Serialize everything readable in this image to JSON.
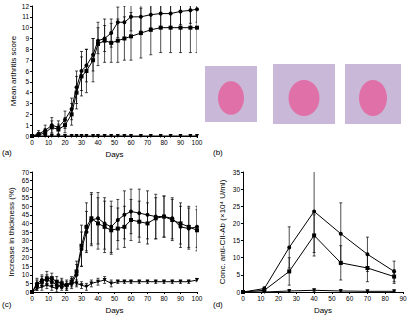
{
  "chart_data": [
    {
      "type": "line",
      "title": "(a)",
      "x_label": "Days",
      "y_label": "Mean arthritis score",
      "xlim": [
        0,
        100
      ],
      "xticks": [
        0,
        10,
        20,
        30,
        40,
        50,
        60,
        70,
        80,
        90,
        100
      ],
      "ylim": [
        0,
        12
      ],
      "yticks": [
        0,
        1,
        2,
        3,
        4,
        5,
        6,
        7,
        8,
        9,
        10,
        11,
        12
      ],
      "grid": false,
      "x": [
        0,
        4,
        8,
        12,
        16,
        20,
        24,
        27,
        30,
        33,
        37,
        40,
        44,
        48,
        52,
        56,
        60,
        66,
        72,
        78,
        84,
        90,
        96,
        100
      ],
      "series": [
        {
          "color": "#000000",
          "marker": "circle",
          "values": [
            0,
            0.2,
            0.5,
            1,
            0.8,
            1.5,
            2.5,
            4.5,
            6,
            6.5,
            7.5,
            8.8,
            9,
            9.5,
            10.5,
            10.5,
            11,
            11,
            11.2,
            11.3,
            11.3,
            11.5,
            11.6,
            11.7
          ],
          "errors": [
            0,
            0.3,
            0.5,
            0.7,
            0.6,
            0.8,
            1,
            1.5,
            1.8,
            1.5,
            1.5,
            1.2,
            1.2,
            1.3,
            1.4,
            1.5,
            1.3,
            1.3,
            1.2,
            1.2,
            1.2,
            1.2,
            1.2,
            1.2
          ]
        },
        {
          "color": "#000000",
          "marker": "square",
          "values": [
            0,
            0.1,
            0.3,
            0.8,
            0.6,
            1,
            2,
            4,
            5.5,
            6,
            7,
            8.5,
            8.8,
            8.6,
            8.8,
            9,
            9.2,
            9.5,
            9.8,
            10,
            10,
            10,
            10,
            10
          ],
          "errors": [
            0,
            0.2,
            0.4,
            0.6,
            0.5,
            0.7,
            1,
            1.5,
            1.8,
            2,
            2,
            2,
            2,
            1.8,
            2,
            2,
            2.2,
            2.3,
            2.3,
            2.3,
            2.3,
            2.3,
            2.3,
            2.3
          ]
        },
        {
          "color": "#000000",
          "marker": "triangle_down",
          "values": [
            0,
            0,
            0,
            0,
            0,
            0,
            0,
            0,
            0,
            0,
            0,
            0,
            0,
            0,
            0,
            0,
            0,
            0,
            0,
            0,
            0,
            0,
            0,
            0
          ],
          "errors": [
            0,
            0,
            0,
            0,
            0,
            0,
            0,
            0,
            0,
            0,
            0,
            0,
            0,
            0,
            0,
            0,
            0,
            0,
            0,
            0,
            0,
            0,
            0,
            0
          ]
        }
      ]
    },
    {
      "type": "line",
      "title": "(c)",
      "x_label": "Days",
      "y_label": "Increase in thickness (%)",
      "xlim": [
        0,
        100
      ],
      "xticks": [
        0,
        10,
        20,
        30,
        40,
        50,
        60,
        70,
        80,
        90,
        100
      ],
      "ylim": [
        0,
        70
      ],
      "yticks": [
        0,
        5,
        10,
        15,
        20,
        25,
        30,
        35,
        40,
        45,
        50,
        55,
        60,
        65,
        70
      ],
      "grid": false,
      "x": [
        0,
        3,
        6,
        9,
        12,
        15,
        18,
        21,
        24,
        27,
        30,
        33,
        36,
        40,
        44,
        48,
        52,
        56,
        60,
        65,
        70,
        75,
        80,
        85,
        90,
        95,
        100
      ],
      "series": [
        {
          "color": "#000000",
          "marker": "circle",
          "values": [
            0,
            5,
            7,
            7,
            6,
            4,
            3,
            4,
            5,
            10,
            25,
            35,
            42,
            43,
            40,
            38,
            42,
            45,
            47,
            46,
            45,
            44,
            44,
            43,
            38,
            37,
            38
          ],
          "errors": [
            0,
            3,
            3,
            3,
            3,
            2,
            2,
            3,
            3,
            6,
            10,
            12,
            15,
            15,
            15,
            15,
            12,
            14,
            13,
            14,
            14,
            13,
            12,
            12,
            12,
            12,
            12
          ]
        },
        {
          "color": "#000000",
          "marker": "square",
          "values": [
            0,
            4,
            6,
            8,
            8,
            6,
            5,
            4,
            6,
            12,
            27,
            38,
            43,
            40,
            38,
            36,
            37,
            38,
            42,
            41,
            40,
            43,
            44,
            42,
            40,
            38,
            36
          ],
          "errors": [
            0,
            3,
            3,
            4,
            3,
            3,
            2,
            2,
            3,
            6,
            12,
            14,
            15,
            15,
            15,
            14,
            12,
            12,
            12,
            12,
            12,
            12,
            12,
            12,
            12,
            12,
            12
          ]
        },
        {
          "color": "#000000",
          "marker": "triangle_down",
          "values": [
            0,
            2,
            3,
            4,
            3,
            2,
            5,
            3,
            6,
            5,
            4,
            3,
            5,
            6,
            7,
            5,
            6,
            6,
            6,
            6,
            6,
            6,
            6,
            6,
            6,
            6,
            7
          ],
          "errors": [
            0,
            1,
            2,
            2,
            2,
            2,
            3,
            2,
            2,
            2,
            2,
            2,
            2,
            2,
            2,
            2,
            1,
            1,
            1,
            1,
            1,
            1,
            1,
            1,
            1,
            1,
            1
          ]
        }
      ]
    },
    {
      "type": "line",
      "title": "(d)",
      "x_label": "Days",
      "y_label": "Conc. anti-CII-Ab (×10⁴ U/ml)",
      "xlim": [
        0,
        90
      ],
      "xticks": [
        0,
        10,
        20,
        30,
        40,
        50,
        60,
        70,
        80,
        90
      ],
      "ylim": [
        0,
        35
      ],
      "yticks": [
        0,
        5,
        10,
        15,
        20,
        25,
        30,
        35
      ],
      "grid": false,
      "x": [
        0,
        12,
        26,
        40,
        55,
        70,
        85
      ],
      "series": [
        {
          "color": "#000000",
          "marker": "circle",
          "values": [
            0,
            1,
            13,
            23.5,
            17,
            11,
            6
          ],
          "errors": [
            0,
            0.5,
            6,
            12,
            9,
            5,
            3
          ]
        },
        {
          "color": "#000000",
          "marker": "square",
          "values": [
            0,
            0.5,
            6,
            16.5,
            8.5,
            7,
            4.5
          ],
          "errors": [
            0,
            0.3,
            4,
            6,
            5,
            4,
            2
          ]
        },
        {
          "color": "#000000",
          "marker": "triangle_down",
          "values": [
            0,
            0,
            0.3,
            0.5,
            0.3,
            0.2,
            0.2
          ],
          "errors": [
            0,
            0,
            0.2,
            0.3,
            0.2,
            0.1,
            0.1
          ]
        }
      ]
    }
  ],
  "image_panel": {
    "title": "(b)"
  }
}
